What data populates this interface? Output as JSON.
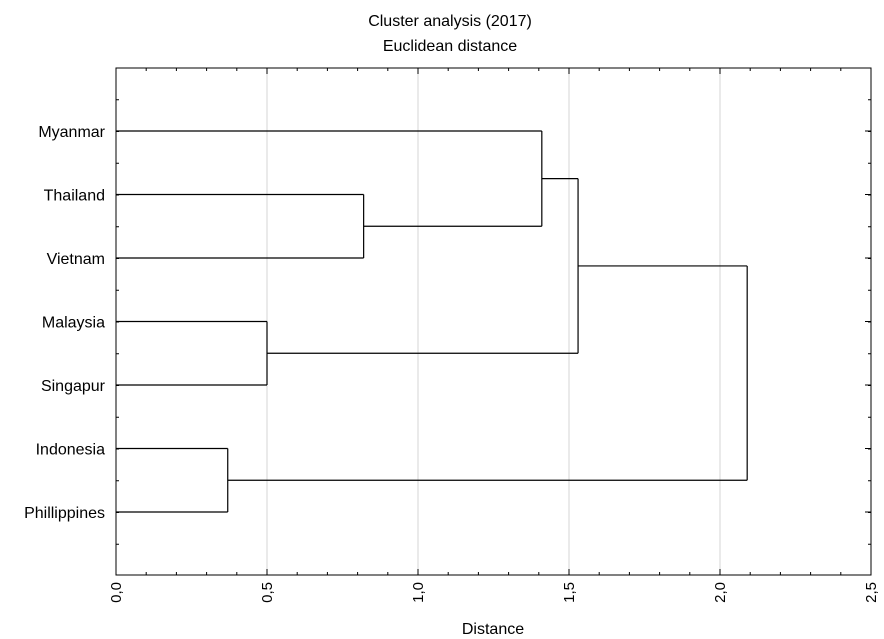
{
  "chart_data": {
    "type": "dendrogram",
    "title": "Cluster analysis (2017)",
    "subtitle": "Euclidean distance",
    "xlabel": "Distance",
    "xlim": [
      0,
      2.5
    ],
    "x_ticks": [
      "0,0",
      "0,5",
      "1,0",
      "1,5",
      "2,0",
      "2,5"
    ],
    "grid": true,
    "leaves": [
      "Myanmar",
      "Thailand",
      "Vietnam",
      "Malaysia",
      "Singapur",
      "Indonesia",
      "Phillippines"
    ],
    "merges": [
      {
        "members": [
          "Indonesia",
          "Phillippines"
        ],
        "distance": 0.37
      },
      {
        "members": [
          "Malaysia",
          "Singapur"
        ],
        "distance": 0.5
      },
      {
        "members": [
          "Thailand",
          "Vietnam"
        ],
        "distance": 0.82
      },
      {
        "members": [
          "Myanmar",
          "Thailand",
          "Vietnam"
        ],
        "distance": 1.41
      },
      {
        "members": [
          "Myanmar",
          "Thailand",
          "Vietnam",
          "Malaysia",
          "Singapur"
        ],
        "distance": 1.53
      },
      {
        "members": [
          "Myanmar",
          "Thailand",
          "Vietnam",
          "Malaysia",
          "Singapur",
          "Indonesia",
          "Phillippines"
        ],
        "distance": 2.09
      }
    ]
  }
}
